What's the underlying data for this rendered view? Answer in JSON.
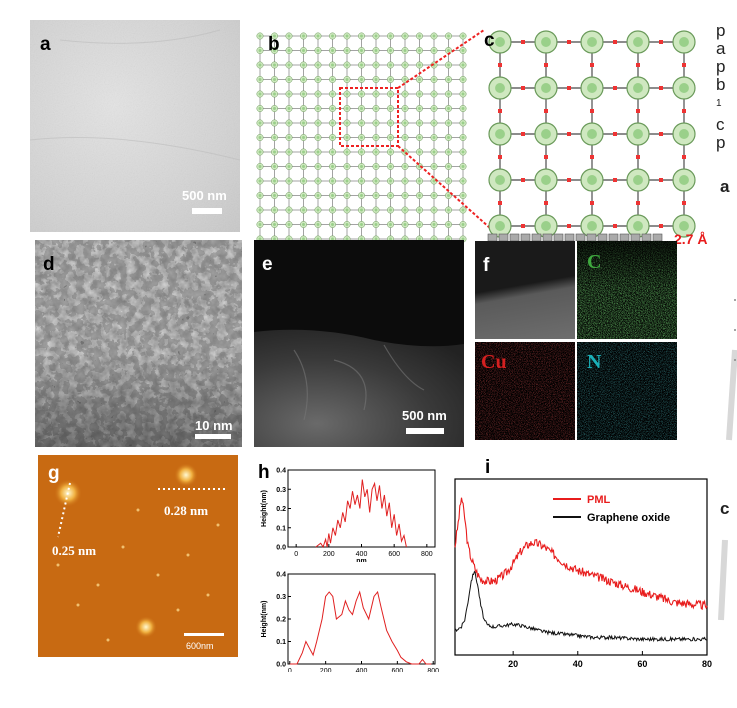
{
  "panels": {
    "a": {
      "label": "a",
      "scale_bar": "500 nm"
    },
    "b": {
      "label": "b"
    },
    "c": {
      "label": "c",
      "thickness": "2.7 Å"
    },
    "d": {
      "label": "d",
      "scale_bar": "10 nm"
    },
    "e": {
      "label": "e",
      "scale_bar": "500 nm"
    },
    "f": {
      "label": "f",
      "maps": [
        "C",
        "Cu",
        "N"
      ]
    },
    "g": {
      "label": "g",
      "height_1": "0.25 nm",
      "height_2": "0.28 nm",
      "scale_bar": "600nm"
    },
    "h": {
      "label": "h"
    },
    "i": {
      "label": "i"
    }
  },
  "side_text": [
    "p",
    "a",
    "p",
    "b",
    "1",
    "c",
    "p",
    "a",
    "c"
  ],
  "chart_data": [
    {
      "type": "line",
      "panel": "h-top",
      "xlabel": "nm",
      "ylabel": "Height(nm)",
      "xlim": [
        -50,
        850
      ],
      "ylim": [
        0.0,
        0.4
      ],
      "xticks": [
        0,
        200,
        400,
        600,
        800
      ],
      "yticks": [
        0.0,
        0.1,
        0.2,
        0.3,
        0.4
      ],
      "ytick_labels": [
        "0.0",
        "0.1",
        "0.2",
        "0.3",
        "0.4"
      ],
      "series": [
        {
          "color": "#e02020",
          "x": [
            120,
            150,
            165,
            180,
            190,
            200,
            210,
            225,
            240,
            255,
            270,
            285,
            300,
            315,
            330,
            345,
            360,
            375,
            390,
            405,
            420,
            435,
            450,
            465,
            480,
            495,
            510,
            525,
            540,
            555,
            570,
            585,
            600,
            615,
            630,
            645,
            660,
            675
          ],
          "y": [
            0.0,
            0.02,
            0.0,
            0.04,
            0.0,
            0.07,
            0.02,
            0.1,
            0.06,
            0.14,
            0.1,
            0.18,
            0.13,
            0.24,
            0.2,
            0.29,
            0.22,
            0.27,
            0.2,
            0.35,
            0.26,
            0.3,
            0.18,
            0.3,
            0.33,
            0.24,
            0.32,
            0.2,
            0.27,
            0.16,
            0.23,
            0.1,
            0.17,
            0.06,
            0.12,
            0.03,
            0.06,
            0.0
          ]
        }
      ]
    },
    {
      "type": "line",
      "panel": "h-bottom",
      "xlabel": "nm",
      "ylabel": "Height(nm)",
      "xlim": [
        -10,
        810
      ],
      "ylim": [
        0.0,
        0.4
      ],
      "xticks": [
        0,
        200,
        400,
        600,
        800
      ],
      "yticks": [
        0.0,
        0.1,
        0.2,
        0.3,
        0.4
      ],
      "ytick_labels": [
        "0.0",
        "0.1",
        "0.2",
        "0.3",
        "0.4"
      ],
      "series": [
        {
          "color": "#e02020",
          "x": [
            0,
            40,
            70,
            90,
            110,
            130,
            150,
            180,
            200,
            220,
            240,
            260,
            290,
            310,
            330,
            350,
            370,
            390,
            410,
            440,
            470,
            490,
            510,
            540,
            570,
            600,
            620,
            650,
            680,
            720,
            740,
            760,
            790
          ],
          "y": [
            0.0,
            0.0,
            0.05,
            0.1,
            0.07,
            0.04,
            0.1,
            0.2,
            0.3,
            0.32,
            0.3,
            0.2,
            0.22,
            0.28,
            0.24,
            0.22,
            0.28,
            0.32,
            0.25,
            0.2,
            0.3,
            0.32,
            0.25,
            0.15,
            0.1,
            0.06,
            0.03,
            0.01,
            0.0,
            0.0,
            0.02,
            0.0,
            0.0
          ]
        }
      ]
    },
    {
      "type": "line",
      "panel": "i",
      "xlim": [
        2,
        80
      ],
      "xticks": [
        20,
        40,
        60,
        80
      ],
      "legend_position": "top-right",
      "series": [
        {
          "name": "PML",
          "color": "#e81c1c",
          "x": [
            2,
            3,
            4,
            5,
            6,
            7,
            8,
            9,
            10,
            12,
            14,
            16,
            18,
            20,
            22,
            24,
            26,
            28,
            30,
            32,
            34,
            36,
            38,
            40,
            45,
            50,
            55,
            60,
            65,
            70,
            75,
            80
          ],
          "y": [
            0.62,
            0.75,
            0.9,
            0.78,
            0.62,
            0.55,
            0.5,
            0.46,
            0.43,
            0.42,
            0.42,
            0.44,
            0.47,
            0.52,
            0.58,
            0.62,
            0.64,
            0.63,
            0.61,
            0.58,
            0.55,
            0.52,
            0.5,
            0.48,
            0.45,
            0.42,
            0.39,
            0.36,
            0.33,
            0.3,
            0.29,
            0.28
          ]
        },
        {
          "name": "Graphene oxide",
          "color": "#111111",
          "x": [
            2,
            4,
            5,
            6,
            7,
            8,
            9,
            10,
            11,
            12,
            14,
            16,
            18,
            20,
            22,
            24,
            26,
            28,
            30,
            35,
            40,
            45,
            50,
            60,
            70,
            80
          ],
          "y": [
            0.14,
            0.16,
            0.2,
            0.3,
            0.42,
            0.48,
            0.4,
            0.28,
            0.2,
            0.17,
            0.16,
            0.165,
            0.17,
            0.175,
            0.17,
            0.16,
            0.15,
            0.14,
            0.13,
            0.12,
            0.11,
            0.1,
            0.1,
            0.09,
            0.09,
            0.09
          ]
        }
      ]
    }
  ],
  "colors": {
    "red": "#e81c1c",
    "afm_bg": "#c86a12",
    "c_map": "#3ea83e",
    "cu_map": "#d42020",
    "n_map": "#1ab0b8"
  }
}
